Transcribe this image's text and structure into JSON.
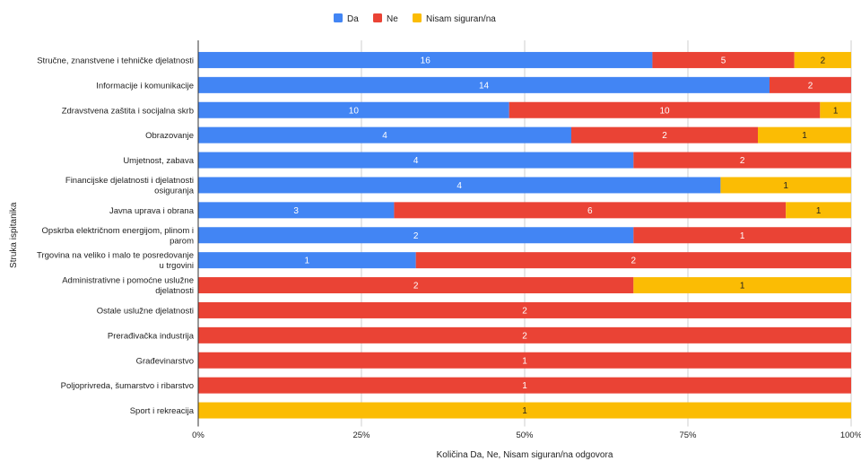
{
  "chart_data": {
    "type": "bar",
    "orientation": "horizontal",
    "stacked": "percent",
    "title": "",
    "xlabel": "Količina Da, Ne, Nisam siguran/na odgovora",
    "ylabel": "Struka ispitanika",
    "x_ticks": [
      "0%",
      "25%",
      "50%",
      "75%",
      "100%"
    ],
    "xlim": [
      0,
      1
    ],
    "legend_position": "top",
    "categories": [
      "Stručne, znanstvene i tehničke djelatnosti",
      "Informacije i komunikacije",
      "Zdravstvena zaštita i socijalna skrb",
      "Obrazovanje",
      "Umjetnost, zabava",
      "Financijske djelatnosti i djelatnosti osiguranja",
      "Javna uprava i obrana",
      "Opskrba električnom energijom, plinom i parom",
      "Trgovina na veliko i malo te posredovanje u trgovini",
      "Administrativne i pomoćne uslužne djelatnosti",
      "Ostale uslužne djelatnosti",
      "Prerađivačka industrija",
      "Građevinarstvo",
      "Poljoprivreda, šumarstvo i ribarstvo",
      "Sport i rekreacija"
    ],
    "category_lines": [
      [
        "Stručne, znanstvene i tehničke djelatnosti"
      ],
      [
        "Informacije i komunikacije"
      ],
      [
        "Zdravstvena zaštita i socijalna skrb"
      ],
      [
        "Obrazovanje"
      ],
      [
        "Umjetnost, zabava"
      ],
      [
        "Financijske djelatnosti i djelatnosti",
        "osiguranja"
      ],
      [
        "Javna uprava i obrana"
      ],
      [
        "Opskrba električnom energijom, plinom i",
        "parom"
      ],
      [
        "Trgovina na veliko i malo te posredovanje",
        "u trgovini"
      ],
      [
        "Administrativne i pomoćne uslužne",
        "djelatnosti"
      ],
      [
        "Ostale uslužne djelatnosti"
      ],
      [
        "Prerađivačka industrija"
      ],
      [
        "Građevinarstvo"
      ],
      [
        "Poljoprivreda, šumarstvo i ribarstvo"
      ],
      [
        "Sport i rekreacija"
      ]
    ],
    "series": [
      {
        "name": "Da",
        "color": "#4285f4",
        "values": [
          16,
          14,
          10,
          4,
          4,
          4,
          3,
          2,
          1,
          0,
          0,
          0,
          0,
          0,
          0
        ]
      },
      {
        "name": "Ne",
        "color": "#ea4335",
        "values": [
          5,
          2,
          10,
          2,
          2,
          0,
          6,
          1,
          2,
          2,
          2,
          2,
          1,
          1,
          0
        ]
      },
      {
        "name": "Nisam siguran/na",
        "color": "#fbbc04",
        "values": [
          2,
          0,
          1,
          1,
          0,
          1,
          1,
          0,
          0,
          1,
          0,
          0,
          0,
          0,
          1
        ]
      }
    ]
  }
}
